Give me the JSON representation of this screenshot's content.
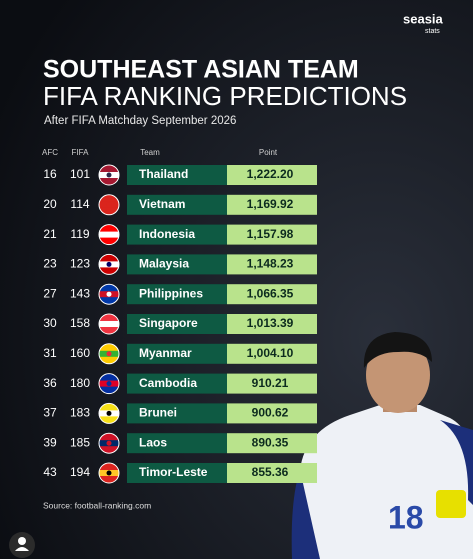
{
  "header": {
    "brand": "seasia",
    "brand_sub": "stats",
    "title_line1": "SOUTHEAST ASIAN TEAM",
    "title_line2": "FIFA RANKING PREDICTIONS",
    "subtitle": "After FIFA Matchday September 2026"
  },
  "table": {
    "columns": [
      "AFC",
      "FIFA",
      "Team",
      "Point"
    ],
    "rows": [
      [
        "16",
        "101",
        "Thailand",
        "1,222.20"
      ],
      [
        "20",
        "114",
        "Vietnam",
        "1,169.92"
      ],
      [
        "21",
        "119",
        "Indonesia",
        "1,157.98"
      ],
      [
        "23",
        "123",
        "Malaysia",
        "1,148.23"
      ],
      [
        "27",
        "143",
        "Philippines",
        "1,066.35"
      ],
      [
        "30",
        "158",
        "Singapore",
        "1,013.39"
      ],
      [
        "31",
        "160",
        "Myanmar",
        "1,004.10"
      ],
      [
        "36",
        "180",
        "Cambodia",
        "910.21"
      ],
      [
        "37",
        "183",
        "Brunei",
        "900.62"
      ],
      [
        "39",
        "185",
        "Laos",
        "890.35"
      ],
      [
        "43",
        "194",
        "Timor-Leste",
        "855.36"
      ]
    ]
  },
  "source": "Source: football-ranking.com"
}
